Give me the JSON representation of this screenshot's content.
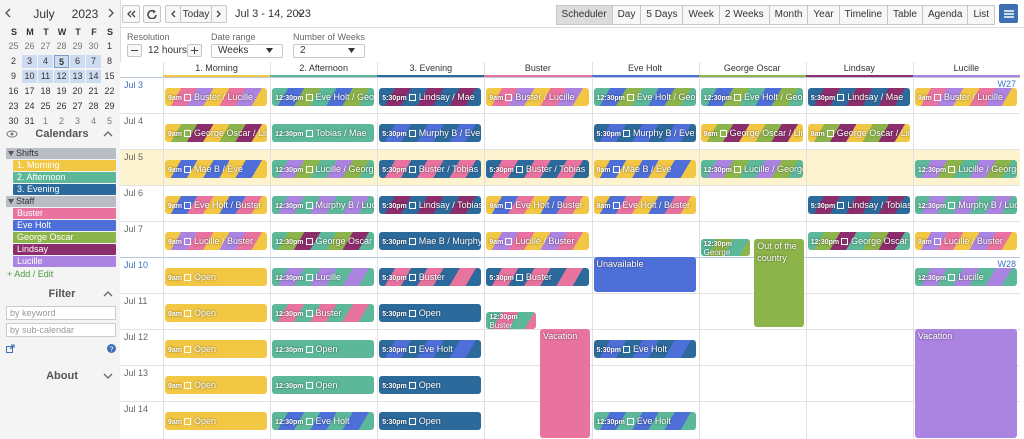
{
  "mini_calendar": {
    "month": "July",
    "year": "2023",
    "weekdays": [
      "S",
      "M",
      "T",
      "W",
      "T",
      "F",
      "S"
    ],
    "weeks": [
      [
        25,
        26,
        27,
        28,
        29,
        30,
        1
      ],
      [
        2,
        3,
        4,
        5,
        6,
        7,
        8
      ],
      [
        9,
        10,
        11,
        12,
        13,
        14,
        15
      ],
      [
        16,
        17,
        18,
        19,
        20,
        21,
        22
      ],
      [
        23,
        24,
        25,
        26,
        27,
        28,
        29
      ],
      [
        30,
        31,
        1,
        2,
        3,
        4,
        5
      ]
    ]
  },
  "calendars": {
    "title": "Calendars",
    "groups": [
      {
        "name": "Shifts",
        "items": [
          {
            "name": "1. Morning",
            "color": "#f2c744"
          },
          {
            "name": "2. Afternoon",
            "color": "#5cb899"
          },
          {
            "name": "3. Evening",
            "color": "#2d6a9c"
          }
        ]
      },
      {
        "name": "Staff",
        "items": [
          {
            "name": "Buster",
            "color": "#e8739f"
          },
          {
            "name": "Eve Holt",
            "color": "#4f6fd8"
          },
          {
            "name": "George Oscar",
            "color": "#8db44a"
          },
          {
            "name": "Lindsay",
            "color": "#8c2d6c"
          },
          {
            "name": "Lucille",
            "color": "#ab83e0"
          }
        ]
      }
    ],
    "add_edit": "+ Add / Edit"
  },
  "filter": {
    "title": "Filter",
    "keyword_placeholder": "by keyword",
    "subcalendar_placeholder": "by sub-calendar"
  },
  "about": "About",
  "toolbar": {
    "today": "Today",
    "range": "Jul 3 - 14, 2023",
    "views": [
      "Scheduler",
      "Day",
      "5 Days",
      "Week",
      "2 Weeks",
      "Month",
      "Year",
      "Timeline",
      "Table",
      "Agenda",
      "List"
    ],
    "active_view": "Scheduler"
  },
  "controls": {
    "resolution_label": "Resolution",
    "resolution": "12 hours",
    "date_range_label": "Date range",
    "date_range": "Weeks",
    "weeks_label": "Number of Weeks",
    "weeks": "2"
  },
  "scheduler": {
    "today": "Jul 5",
    "columns": [
      "1. Morning",
      "2. Afternoon",
      "3. Evening",
      "Buster",
      "Eve Holt",
      "George Oscar",
      "Lindsay",
      "Lucille"
    ],
    "rows": [
      {
        "date": "Jul 3",
        "week": "W27",
        "cells": [
          [
            {
              "time": "9am",
              "title": "Buster / Lucille"
            }
          ],
          [
            {
              "time": "12:30pm",
              "title": "Eve Holt / George"
            }
          ],
          [
            {
              "time": "5:30pm",
              "title": "Lindsay / Mae"
            }
          ],
          [
            {
              "time": "9am",
              "title": "Buster / Lucille"
            }
          ],
          [
            {
              "time": "12:30pm",
              "title": "Eve Holt / George"
            }
          ],
          [
            {
              "time": "12:30pm",
              "title": "Eve Holt / George"
            }
          ],
          [
            {
              "time": "5:30pm",
              "title": "Lindsay / Mae"
            }
          ],
          [
            {
              "time": "9am",
              "title": "Buster / Lucille"
            }
          ]
        ]
      },
      {
        "date": "Jul 4",
        "cells": [
          [
            {
              "time": "9am",
              "title": "George Oscar / Lindsay"
            }
          ],
          [
            {
              "time": "12:30pm",
              "title": "Tobias / Mae"
            }
          ],
          [
            {
              "time": "5:30pm",
              "title": "Murphy B / Eve"
            }
          ],
          [],
          [
            {
              "time": "5:30pm",
              "title": "Murphy B / Eve"
            }
          ],
          [
            {
              "time": "9am",
              "title": "George Oscar / Lindsay"
            }
          ],
          [
            {
              "time": "9am",
              "title": "George Oscar / Lindsay"
            }
          ],
          []
        ]
      },
      {
        "date": "Jul 5",
        "cells": [
          [
            {
              "time": "9am",
              "title": "Mae B / Eve"
            }
          ],
          [
            {
              "time": "12:30pm",
              "title": "Lucille / George"
            }
          ],
          [
            {
              "time": "5:30pm",
              "title": "Buster / Tobias"
            }
          ],
          [
            {
              "time": "5:30pm",
              "title": "Buster / Tobias"
            }
          ],
          [
            {
              "time": "9am",
              "title": "Mae B / Eve"
            }
          ],
          [
            {
              "time": "12:30pm",
              "title": "Lucille / George"
            }
          ],
          [],
          [
            {
              "time": "12:30pm",
              "title": "Lucille / George"
            }
          ]
        ]
      },
      {
        "date": "Jul 6",
        "cells": [
          [
            {
              "time": "9am",
              "title": "Eve Holt / Buster"
            }
          ],
          [
            {
              "time": "12:30pm",
              "title": "Murphy B / Lucille"
            }
          ],
          [
            {
              "time": "5:30pm",
              "title": "Lindsay / Tobias"
            }
          ],
          [
            {
              "time": "9am",
              "title": "Eve Holt / Buster"
            }
          ],
          [
            {
              "time": "9am",
              "title": "Eve Holt / Buster"
            }
          ],
          [],
          [
            {
              "time": "5:30pm",
              "title": "Lindsay / Tobias"
            }
          ],
          [
            {
              "time": "12:30pm",
              "title": "Murphy B / Lucille"
            }
          ]
        ]
      },
      {
        "date": "Jul 7",
        "cells": [
          [
            {
              "time": "9am",
              "title": "Lucille / Buster"
            }
          ],
          [
            {
              "time": "12:30pm",
              "title": "George Oscar / Lindsay"
            }
          ],
          [
            {
              "time": "5:30pm",
              "title": "Mae B / Murphy"
            }
          ],
          [
            {
              "time": "9am",
              "title": "Lucille / Buster"
            }
          ],
          [],
          [
            {
              "time": "12:30pm",
              "title": "George Oscar"
            },
            {
              "title": "Out of the country"
            }
          ],
          [
            {
              "time": "12:30pm",
              "title": "George Oscar / Lindsay"
            }
          ],
          [
            {
              "time": "9am",
              "title": "Lucille / Buster"
            }
          ]
        ]
      },
      {
        "date": "Jul 10",
        "week": "W28",
        "cells": [
          [
            {
              "time": "9am",
              "title": "Open"
            }
          ],
          [
            {
              "time": "12:30pm",
              "title": "Lucille"
            }
          ],
          [
            {
              "time": "5:30pm",
              "title": "Buster"
            }
          ],
          [
            {
              "time": "5:30pm",
              "title": "Buster"
            }
          ],
          [
            {
              "title": "Unavailable"
            }
          ],
          [],
          [],
          [
            {
              "time": "12:30pm",
              "title": "Lucille"
            }
          ]
        ]
      },
      {
        "date": "Jul 11",
        "cells": [
          [
            {
              "time": "9am",
              "title": "Open"
            }
          ],
          [
            {
              "time": "12:30pm",
              "title": "Buster"
            }
          ],
          [
            {
              "time": "5:30pm",
              "title": "Open"
            }
          ],
          [
            {
              "time": "12:30pm",
              "title": "Buster"
            }
          ],
          [],
          [],
          [],
          []
        ]
      },
      {
        "date": "Jul 12",
        "cells": [
          [
            {
              "time": "9am",
              "title": "Open"
            }
          ],
          [
            {
              "time": "12:30pm",
              "title": "Open"
            }
          ],
          [
            {
              "time": "5:30pm",
              "title": "Eve Holt"
            }
          ],
          [
            {
              "title": "Vacation"
            }
          ],
          [
            {
              "time": "5:30pm",
              "title": "Eve Holt"
            }
          ],
          [],
          [],
          [
            {
              "title": "Vacation"
            }
          ]
        ]
      },
      {
        "date": "Jul 13",
        "cells": [
          [
            {
              "time": "9am",
              "title": "Open"
            }
          ],
          [
            {
              "time": "12:30pm",
              "title": "Open"
            }
          ],
          [
            {
              "time": "5:30pm",
              "title": "Open"
            }
          ],
          [],
          [],
          [],
          [],
          []
        ]
      },
      {
        "date": "Jul 14",
        "cells": [
          [
            {
              "time": "9am",
              "title": "Open"
            }
          ],
          [
            {
              "time": "12:30pm",
              "title": "Eve Holt"
            }
          ],
          [
            {
              "time": "5:30pm",
              "title": "Open"
            }
          ],
          [],
          [
            {
              "time": "12:30pm",
              "title": "Eve Holt"
            }
          ],
          [],
          [],
          []
        ]
      }
    ]
  }
}
